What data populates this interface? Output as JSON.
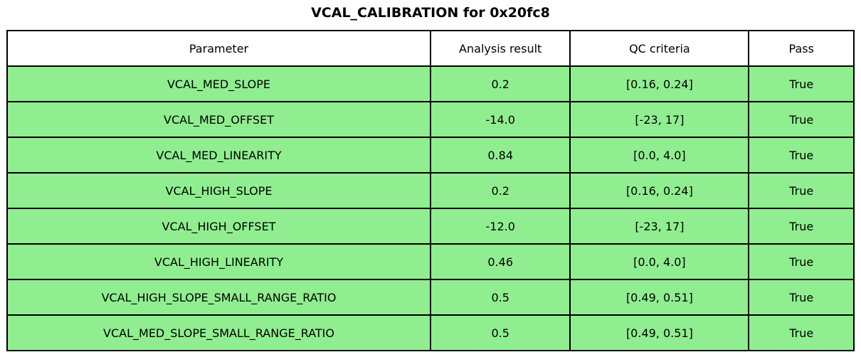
{
  "title": "VCAL_CALIBRATION for 0x20fc8",
  "colors": {
    "pass_row_bg": "#90EE90",
    "header_bg": "#FFFFFF",
    "border": "#000000",
    "text": "#000000"
  },
  "chart_data": {
    "type": "table",
    "title": "VCAL_CALIBRATION for 0x20fc8",
    "columns": [
      "Parameter",
      "Analysis result",
      "QC criteria",
      "Pass"
    ],
    "rows": [
      {
        "parameter": "VCAL_MED_SLOPE",
        "analysis_result": "0.2",
        "qc_criteria": "[0.16, 0.24]",
        "pass": "True"
      },
      {
        "parameter": "VCAL_MED_OFFSET",
        "analysis_result": "-14.0",
        "qc_criteria": "[-23, 17]",
        "pass": "True"
      },
      {
        "parameter": "VCAL_MED_LINEARITY",
        "analysis_result": "0.84",
        "qc_criteria": "[0.0, 4.0]",
        "pass": "True"
      },
      {
        "parameter": "VCAL_HIGH_SLOPE",
        "analysis_result": "0.2",
        "qc_criteria": "[0.16, 0.24]",
        "pass": "True"
      },
      {
        "parameter": "VCAL_HIGH_OFFSET",
        "analysis_result": "-12.0",
        "qc_criteria": "[-23, 17]",
        "pass": "True"
      },
      {
        "parameter": "VCAL_HIGH_LINEARITY",
        "analysis_result": "0.46",
        "qc_criteria": "[0.0, 4.0]",
        "pass": "True"
      },
      {
        "parameter": "VCAL_HIGH_SLOPE_SMALL_RANGE_RATIO",
        "analysis_result": "0.5",
        "qc_criteria": "[0.49, 0.51]",
        "pass": "True"
      },
      {
        "parameter": "VCAL_MED_SLOPE_SMALL_RANGE_RATIO",
        "analysis_result": "0.5",
        "qc_criteria": "[0.49, 0.51]",
        "pass": "True"
      }
    ]
  }
}
